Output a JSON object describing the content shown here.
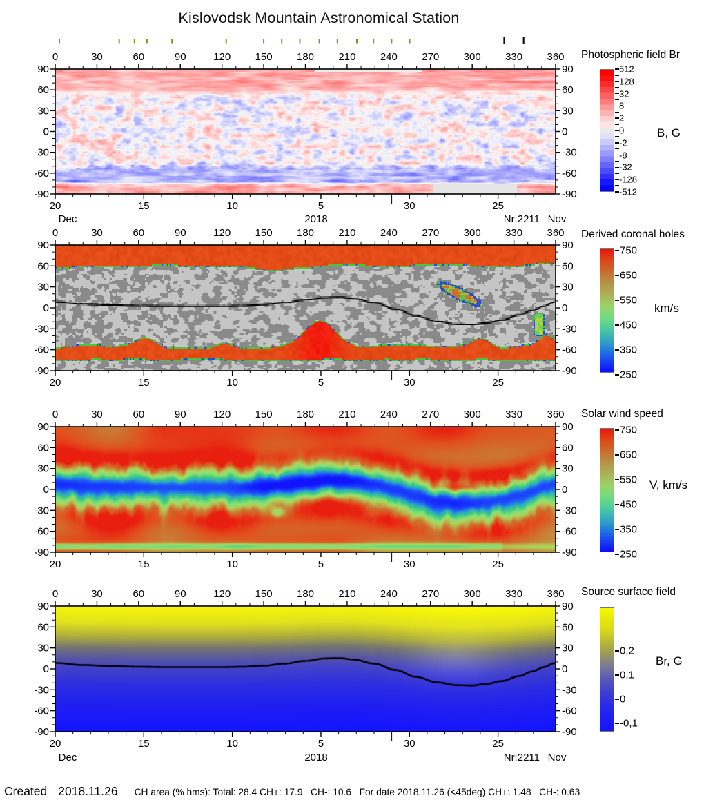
{
  "title": "Kislovodsk Mountain Astronomical Station",
  "footer": {
    "created_label": "Created",
    "created_date": "2018.11.26",
    "stats": "CH area (% hms): Total: 28.4 CH+: 17.9   CH-: 10.6   For date 2018.11.26 (<45deg) CH+: 1.48   CH-: 0.63"
  },
  "axes": {
    "longitude": {
      "min": 0,
      "max": 360,
      "major_step": 30,
      "minor_step": 10,
      "labels": [
        "0",
        "30",
        "60",
        "90",
        "120",
        "150",
        "180",
        "210",
        "240",
        "270",
        "300",
        "330",
        "360"
      ]
    },
    "latitude": {
      "min": -90,
      "max": 90,
      "major_step": 30,
      "minor_step": 10,
      "labels": [
        "90",
        "60",
        "30",
        "0",
        "-30",
        "-60",
        "-90"
      ],
      "values": [
        90,
        60,
        30,
        0,
        -30,
        -60,
        -90
      ]
    },
    "date": {
      "day_labels": [
        "20",
        "15",
        "10",
        "5",
        "30",
        "25"
      ],
      "tick_day_indices": [
        0,
        5,
        10,
        15,
        20,
        25
      ],
      "days_shown": 28,
      "month_boundary_day_index": 19,
      "left_month": "Dec",
      "year": "2018",
      "rotation_label": "Nr:2211",
      "right_month": "Nov"
    }
  },
  "event_markers": {
    "olive_longitudes": [
      3,
      46,
      57,
      66,
      84,
      123,
      150,
      163,
      176,
      190,
      203,
      217,
      229,
      242,
      255
    ],
    "black_longitudes": [
      323,
      337
    ],
    "olive_color": "#8f8f12",
    "black_color": "#111111"
  },
  "neutral_line": [
    [
      0,
      8
    ],
    [
      20,
      5
    ],
    [
      40,
      3.5
    ],
    [
      60,
      2.5
    ],
    [
      80,
      2
    ],
    [
      100,
      2
    ],
    [
      120,
      2
    ],
    [
      135,
      2.5
    ],
    [
      150,
      4
    ],
    [
      165,
      7
    ],
    [
      180,
      11
    ],
    [
      195,
      14.5
    ],
    [
      205,
      15
    ],
    [
      215,
      13
    ],
    [
      230,
      7
    ],
    [
      245,
      -2
    ],
    [
      260,
      -12
    ],
    [
      275,
      -20
    ],
    [
      290,
      -24
    ],
    [
      300,
      -24.5
    ],
    [
      310,
      -22.5
    ],
    [
      322,
      -18
    ],
    [
      334,
      -11
    ],
    [
      344,
      -4
    ],
    [
      352,
      2
    ],
    [
      360,
      8
    ]
  ],
  "chart_data": [
    {
      "type": "heatmap",
      "name": "photospheric-field-br",
      "title": "Photospheric field Br",
      "unit": "B, G",
      "x_range": [
        0,
        360
      ],
      "y_range": [
        -90,
        90
      ],
      "colorbar": {
        "scale": "symlog",
        "tick_labels": [
          "512",
          "128",
          "32",
          "8",
          "2",
          "0",
          "-2",
          "-8",
          "-32",
          "-128",
          "-512"
        ],
        "step_colors": [
          "#ff0000",
          "#ff1111",
          "#ff2a2a",
          "#ff4545",
          "#ff6060",
          "#ff7c7c",
          "#ff9898",
          "#ffb4b4",
          "#ffcfcf",
          "#ffe4e4",
          "#eaeaea",
          "#e0e0ff",
          "#cbcbff",
          "#b3b3ff",
          "#9999ff",
          "#7f7fff",
          "#6565ff",
          "#4a4aff",
          "#3030ff",
          "#1818ff",
          "#0404ff"
        ]
      },
      "structure": {
        "north_positive_band_lat": [
          60,
          90
        ],
        "mixed_band_lat": [
          -48,
          58
        ],
        "south_negative_band_lat": [
          -75,
          -48
        ],
        "south_positive_strip_lat": [
          -90,
          -77
        ],
        "gray_gap_top": {
          "lon": [
            186,
            264
          ],
          "lat": [
            86,
            90
          ]
        },
        "gray_gap_bottom": {
          "lon": [
            272,
            333
          ],
          "lat": [
            -90,
            -77
          ]
        }
      }
    },
    {
      "type": "heatmap",
      "name": "derived-coronal-holes",
      "title": "Derived coronal holes",
      "unit": "km/s",
      "colorbar": {
        "tick_labels": [
          "750",
          "650",
          "550",
          "450",
          "350",
          "250"
        ],
        "gradient": [
          [
            0,
            "#e81410"
          ],
          [
            0.08,
            "#df4214"
          ],
          [
            0.18,
            "#c96b2e"
          ],
          [
            0.28,
            "#b49548"
          ],
          [
            0.36,
            "#aeae56"
          ],
          [
            0.46,
            "#9cd268"
          ],
          [
            0.56,
            "#6fdc82"
          ],
          [
            0.66,
            "#46c8a2"
          ],
          [
            0.76,
            "#2e9ec9"
          ],
          [
            0.86,
            "#1e62e6"
          ],
          [
            1,
            "#0c0cff"
          ]
        ]
      },
      "features": [
        {
          "name": "north-polar-coronal-hole",
          "boundary_lat": 62
        },
        {
          "name": "south-polar-coronal-hole",
          "upper_boundary_lat": -57,
          "gray_cap_below_lat": -75
        },
        {
          "name": "equatorward-extension",
          "lon_center": 190,
          "reaches_lat": -20
        },
        {
          "name": "isolated-coronal-hole",
          "lon_range": [
            274,
            305
          ],
          "lat_range": [
            4,
            35
          ]
        },
        {
          "name": "narrow-channel",
          "lon_range": [
            346,
            351
          ],
          "lat_range": [
            -38,
            -9
          ]
        },
        {
          "name": "south-boundary-bump-lons",
          "value": [
            65,
            122,
            307,
            354
          ]
        }
      ]
    },
    {
      "type": "heatmap",
      "name": "solar-wind-speed",
      "title": "Solar wind speed",
      "unit": "V, km/s",
      "colorbar": {
        "tick_labels": [
          "750",
          "650",
          "550",
          "450",
          "350",
          "250"
        ],
        "gradient": [
          [
            0,
            "#e81410"
          ],
          [
            0.08,
            "#df4214"
          ],
          [
            0.18,
            "#c96b2e"
          ],
          [
            0.28,
            "#b49548"
          ],
          [
            0.36,
            "#aeae56"
          ],
          [
            0.46,
            "#9cd268"
          ],
          [
            0.56,
            "#6fdc82"
          ],
          [
            0.66,
            "#46c8a2"
          ],
          [
            0.76,
            "#2e9ec9"
          ],
          [
            0.86,
            "#1e62e6"
          ],
          [
            1,
            "#0c0cff"
          ]
        ]
      },
      "palette_stops": [
        [
          250,
          "#1010ff"
        ],
        [
          320,
          "#1e50fa"
        ],
        [
          390,
          "#28aac8"
        ],
        [
          460,
          "#46cd78"
        ],
        [
          530,
          "#87e178"
        ],
        [
          590,
          "#afd25a"
        ],
        [
          640,
          "#bea846"
        ],
        [
          680,
          "#cd7332"
        ],
        [
          715,
          "#e1501e"
        ],
        [
          750,
          "#e81e0f"
        ]
      ],
      "structure": {
        "slow_band": "follows neutral line, jagged edges",
        "fast_region": {
          "lon": 197,
          "lat": -25,
          "speed": 750
        },
        "secondary_fast_patch": {
          "lon": 289,
          "lat": 4
        },
        "slow_south_strip_lat": [
          -87,
          -78
        ]
      }
    },
    {
      "type": "heatmap",
      "name": "source-surface-field",
      "title": "Source surface field",
      "unit": "Br, G",
      "colorbar": {
        "tick_labels": [
          "0,2",
          "0,1",
          "0",
          "-0,1"
        ],
        "gradient": [
          [
            0,
            "#f8f800"
          ],
          [
            0.18,
            "#d8d818"
          ],
          [
            0.35,
            "#a0a050"
          ],
          [
            0.48,
            "#787898"
          ],
          [
            0.58,
            "#5858b8"
          ],
          [
            0.68,
            "#4040d0"
          ],
          [
            0.8,
            "#2828ea"
          ],
          [
            1,
            "#1414ff"
          ]
        ]
      },
      "lat_color_stops": [
        [
          90,
          "#f8f808"
        ],
        [
          65,
          "#e1e11e"
        ],
        [
          45,
          "#acac3e"
        ],
        [
          30,
          "#767670"
        ],
        [
          15,
          "#5858a0"
        ],
        [
          0,
          "#4242c8"
        ],
        [
          -25,
          "#2d2de1"
        ],
        [
          -55,
          "#1e1ef2"
        ],
        [
          -90,
          "#1414ff"
        ]
      ],
      "structure": {
        "positive_yellow_north_of_lat": 45,
        "negative_blue_south": true,
        "neutral_line_overplotted": true
      }
    }
  ]
}
